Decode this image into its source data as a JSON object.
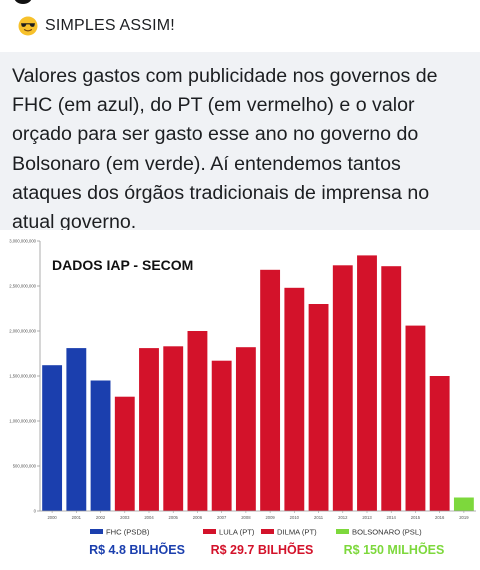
{
  "post": {
    "label": "SIMPLES ASSIM!",
    "emoji_icon": "sunglasses-face-icon",
    "text": "Valores gastos com publicidade nos governos de FHC (em azul), do PT (em vermelho) e o valor orçado para ser gasto esse ano no governo do Bolsonaro (em verde). Aí entendemos tantos ataques dos órgãos tradicionais de imprensa no atual governo."
  },
  "colors": {
    "fhc": "#1b3fae",
    "pt": "#d3122a",
    "bolsonaro": "#7dd83c",
    "post_background": "#f0f2f5"
  },
  "chart_data": {
    "type": "bar",
    "title": "DADOS IAP - SECOM",
    "categories": [
      "2000",
      "2001",
      "2002",
      "2003",
      "2004",
      "2005",
      "2006",
      "2007",
      "2008",
      "2009",
      "2010",
      "2011",
      "2012",
      "2013",
      "2014",
      "2015",
      "2016",
      "2019"
    ],
    "values": [
      1620000000,
      1810000000,
      1450000000,
      1270000000,
      1810000000,
      1830000000,
      2000000000,
      1670000000,
      1820000000,
      2680000000,
      2480000000,
      2300000000,
      2730000000,
      2840000000,
      2720000000,
      2060000000,
      1500000000,
      150000000
    ],
    "groups": [
      "fhc",
      "fhc",
      "fhc",
      "pt",
      "pt",
      "pt",
      "pt",
      "pt",
      "pt",
      "pt",
      "pt",
      "pt",
      "pt",
      "pt",
      "pt",
      "pt",
      "pt",
      "bolsonaro"
    ],
    "ylim": [
      0,
      3000000000
    ],
    "yticks": [
      0,
      500000000,
      1000000000,
      1500000000,
      2000000000,
      2500000000,
      3000000000
    ],
    "ytick_labels": [
      "0",
      "500,000,000",
      "1,000,000,000",
      "1,500,000,000",
      "2,000,000,000",
      "2,500,000,000",
      "3,000,000,000"
    ],
    "grid": false,
    "legend": [
      {
        "label": "FHC (PSDB)",
        "group": "fhc"
      },
      {
        "label": "LULA (PT)",
        "group": "pt"
      },
      {
        "label": "DILMA (PT)",
        "group": "pt"
      },
      {
        "label": "BOLSONARO (PSL)",
        "group": "bolsonaro"
      }
    ],
    "totals": [
      {
        "label": "R$ 4.8 BILHÕES",
        "group": "fhc"
      },
      {
        "label": "R$ 29.7 BILHÕES",
        "group": "pt"
      },
      {
        "label": "R$ 150 MILHÕES",
        "group": "bolsonaro"
      }
    ]
  }
}
